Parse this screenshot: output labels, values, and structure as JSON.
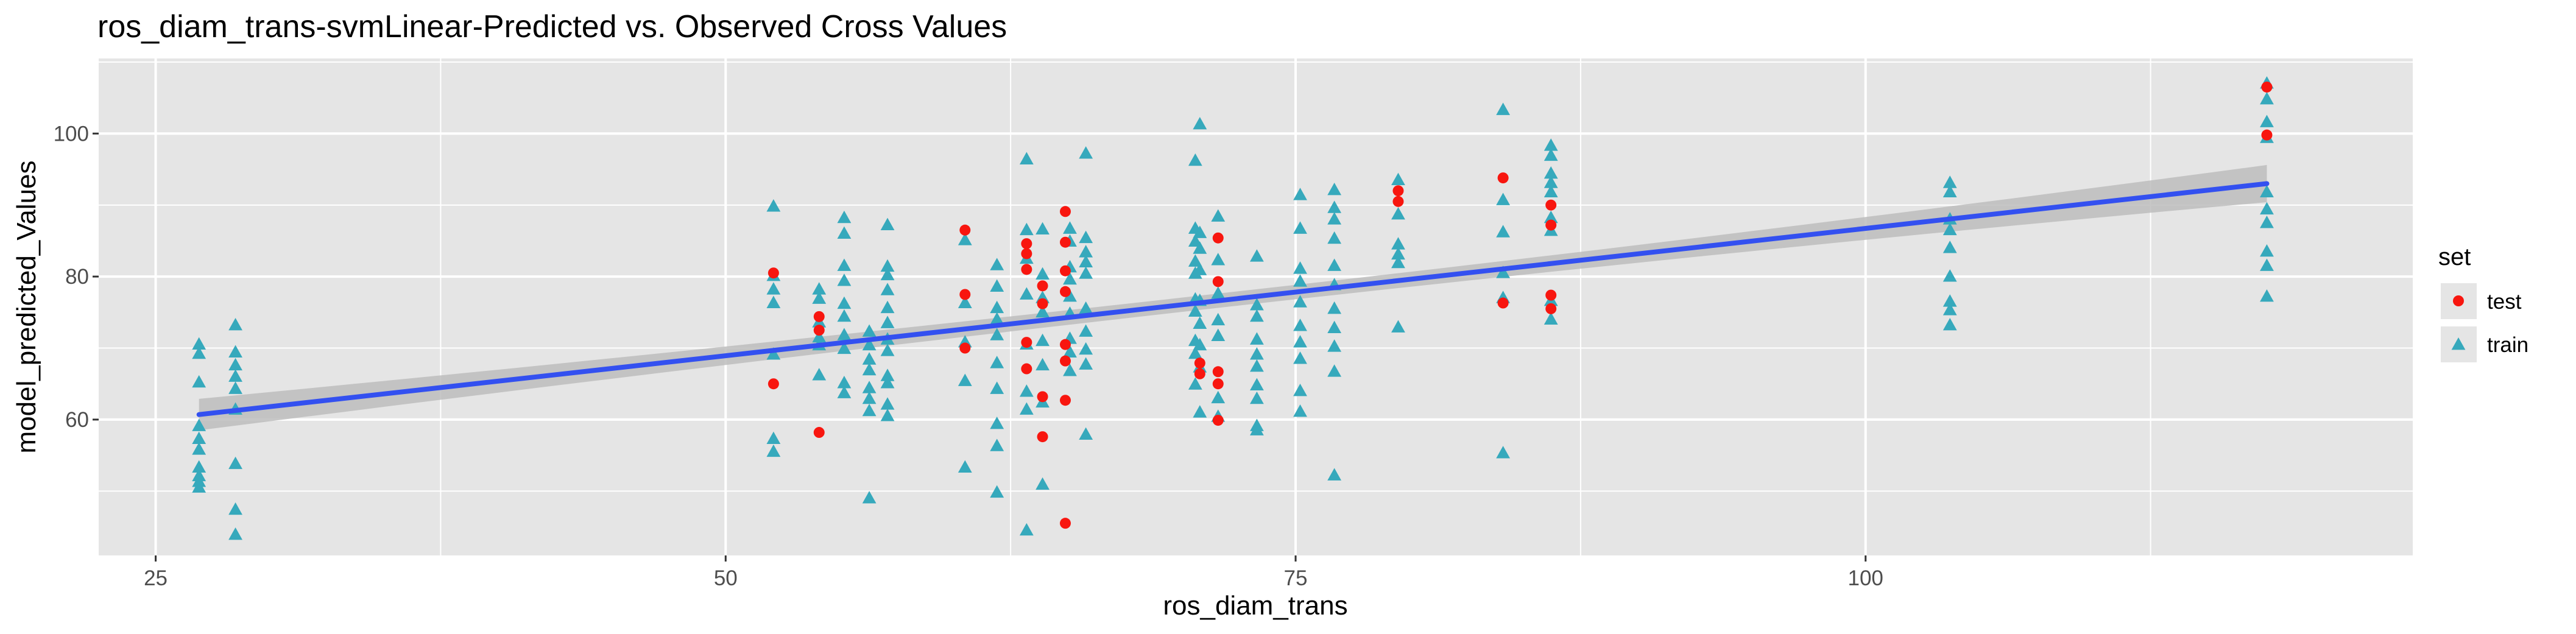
{
  "chart_data": {
    "type": "scatter",
    "title": "ros_diam_trans-svmLinear-Predicted vs. Observed Cross Values",
    "xlabel": "ros_diam_trans",
    "ylabel": "model_predicted_Values",
    "xlim": [
      22.5,
      124
    ],
    "ylim": [
      41,
      110.5
    ],
    "x_ticks": [
      25,
      50,
      75,
      100
    ],
    "y_ticks": [
      60,
      80,
      100
    ],
    "grid": true,
    "legend": {
      "title": "set",
      "position": "right",
      "entries": [
        "test",
        "train"
      ]
    },
    "colors": {
      "test": "#F8160F",
      "train": "#36A9BC",
      "fit_line": "#3350F0",
      "ribbon": "#bdbdbd",
      "panel": "#e5e5e5",
      "grid": "#ffffff"
    },
    "fit": {
      "x": [
        26.9,
        117.6
      ],
      "y": [
        60.7,
        93
      ],
      "ribbon_halfwidth_start": 2.2,
      "ribbon_halfwidth_end": 2.6,
      "ribbon_halfwidth_mid": 1.0
    },
    "series": [
      {
        "name": "train",
        "marker": "triangle",
        "points": [
          [
            26.9,
            70.5
          ],
          [
            26.9,
            69.2
          ],
          [
            26.9,
            65.2
          ],
          [
            26.9,
            59.1
          ],
          [
            26.9,
            57.3
          ],
          [
            26.9,
            55.8
          ],
          [
            26.9,
            53.3
          ],
          [
            26.9,
            52.1
          ],
          [
            26.9,
            51.3
          ],
          [
            26.9,
            50.5
          ],
          [
            28.5,
            73.2
          ],
          [
            28.5,
            69.4
          ],
          [
            28.5,
            67.6
          ],
          [
            28.5,
            66.0
          ],
          [
            28.5,
            64.3
          ],
          [
            28.5,
            61.4
          ],
          [
            28.5,
            53.8
          ],
          [
            28.5,
            47.4
          ],
          [
            28.5,
            43.9
          ],
          [
            52.1,
            89.8
          ],
          [
            52.1,
            80.1
          ],
          [
            52.1,
            78.2
          ],
          [
            52.1,
            76.3
          ],
          [
            52.1,
            69.1
          ],
          [
            52.1,
            57.3
          ],
          [
            52.1,
            55.5
          ],
          [
            54.1,
            78.2
          ],
          [
            54.1,
            76.9
          ],
          [
            54.1,
            73.6
          ],
          [
            54.1,
            71.5
          ],
          [
            54.1,
            70.4
          ],
          [
            54.1,
            66.2
          ],
          [
            55.2,
            88.2
          ],
          [
            55.2,
            86.0
          ],
          [
            55.2,
            81.5
          ],
          [
            55.2,
            79.4
          ],
          [
            55.2,
            76.2
          ],
          [
            55.2,
            74.4
          ],
          [
            55.2,
            71.8
          ],
          [
            55.2,
            69.9
          ],
          [
            55.2,
            65.1
          ],
          [
            55.2,
            63.7
          ],
          [
            56.3,
            49.0
          ],
          [
            56.3,
            72.3
          ],
          [
            56.3,
            70.4
          ],
          [
            56.3,
            68.4
          ],
          [
            56.3,
            66.9
          ],
          [
            56.3,
            64.4
          ],
          [
            56.3,
            62.9
          ],
          [
            56.3,
            61.2
          ],
          [
            57.1,
            87.2
          ],
          [
            57.1,
            81.4
          ],
          [
            57.1,
            80.2
          ],
          [
            57.1,
            78.1
          ],
          [
            57.1,
            75.6
          ],
          [
            57.1,
            73.5
          ],
          [
            57.1,
            71.2
          ],
          [
            57.1,
            69.6
          ],
          [
            57.1,
            66.1
          ],
          [
            57.1,
            65.1
          ],
          [
            57.1,
            62.1
          ],
          [
            57.1,
            60.5
          ],
          [
            60.5,
            85.1
          ],
          [
            60.5,
            76.3
          ],
          [
            60.5,
            70.8
          ],
          [
            60.5,
            65.4
          ],
          [
            60.5,
            53.3
          ],
          [
            61.9,
            81.6
          ],
          [
            61.9,
            78.6
          ],
          [
            61.9,
            75.6
          ],
          [
            61.9,
            74.0
          ],
          [
            61.9,
            71.8
          ],
          [
            61.9,
            67.9
          ],
          [
            61.9,
            64.3
          ],
          [
            61.9,
            59.4
          ],
          [
            61.9,
            56.3
          ],
          [
            61.9,
            49.8
          ],
          [
            63.2,
            96.4
          ],
          [
            63.2,
            86.5
          ],
          [
            63.2,
            82.5
          ],
          [
            63.2,
            77.5
          ],
          [
            63.2,
            70.5
          ],
          [
            63.2,
            63.9
          ],
          [
            63.2,
            61.4
          ],
          [
            63.2,
            44.5
          ],
          [
            63.9,
            86.6
          ],
          [
            63.9,
            80.3
          ],
          [
            63.9,
            77.0
          ],
          [
            63.9,
            75.0
          ],
          [
            63.9,
            71.0
          ],
          [
            63.9,
            67.6
          ],
          [
            63.9,
            62.4
          ],
          [
            63.9,
            50.9
          ],
          [
            65.1,
            86.7
          ],
          [
            65.1,
            84.9
          ],
          [
            65.1,
            81.3
          ],
          [
            65.1,
            79.6
          ],
          [
            65.1,
            77.2
          ],
          [
            65.1,
            74.8
          ],
          [
            65.1,
            71.3
          ],
          [
            65.1,
            69.4
          ],
          [
            65.1,
            66.8
          ],
          [
            65.8,
            97.2
          ],
          [
            65.8,
            85.4
          ],
          [
            65.8,
            83.4
          ],
          [
            65.8,
            82.0
          ],
          [
            65.8,
            80.4
          ],
          [
            65.8,
            75.5
          ],
          [
            65.8,
            72.3
          ],
          [
            65.8,
            69.8
          ],
          [
            65.8,
            67.7
          ],
          [
            65.8,
            57.9
          ],
          [
            70.6,
            96.2
          ],
          [
            70.6,
            86.7
          ],
          [
            70.6,
            84.9
          ],
          [
            70.6,
            82.1
          ],
          [
            70.6,
            80.4
          ],
          [
            70.6,
            76.8
          ],
          [
            70.6,
            75.1
          ],
          [
            70.6,
            71.0
          ],
          [
            70.6,
            69.2
          ],
          [
            70.6,
            64.9
          ],
          [
            70.8,
            101.3
          ],
          [
            70.8,
            86.1
          ],
          [
            70.8,
            83.9
          ],
          [
            70.8,
            80.9
          ],
          [
            70.8,
            76.6
          ],
          [
            70.8,
            73.4
          ],
          [
            70.8,
            70.4
          ],
          [
            70.8,
            67.3
          ],
          [
            70.8,
            61.0
          ],
          [
            71.6,
            88.4
          ],
          [
            71.6,
            82.3
          ],
          [
            71.6,
            77.6
          ],
          [
            71.6,
            73.9
          ],
          [
            71.6,
            71.7
          ],
          [
            71.6,
            63.0
          ],
          [
            71.6,
            60.4
          ],
          [
            73.3,
            82.8
          ],
          [
            73.3,
            76.0
          ],
          [
            73.3,
            74.4
          ],
          [
            73.3,
            71.2
          ],
          [
            73.3,
            69.1
          ],
          [
            73.3,
            67.4
          ],
          [
            73.3,
            64.8
          ],
          [
            73.3,
            62.9
          ],
          [
            73.3,
            59.1
          ],
          [
            73.3,
            58.5
          ],
          [
            75.2,
            91.4
          ],
          [
            75.2,
            86.7
          ],
          [
            75.2,
            81.1
          ],
          [
            75.2,
            79.3
          ],
          [
            75.2,
            76.4
          ],
          [
            75.2,
            73.1
          ],
          [
            75.2,
            70.8
          ],
          [
            75.2,
            68.5
          ],
          [
            75.2,
            64.0
          ],
          [
            75.2,
            61.1
          ],
          [
            76.7,
            92.1
          ],
          [
            76.7,
            89.6
          ],
          [
            76.7,
            88.0
          ],
          [
            76.7,
            85.3
          ],
          [
            76.7,
            81.5
          ],
          [
            76.7,
            78.8
          ],
          [
            76.7,
            75.5
          ],
          [
            76.7,
            72.8
          ],
          [
            76.7,
            70.2
          ],
          [
            76.7,
            66.7
          ],
          [
            76.7,
            52.2
          ],
          [
            79.5,
            93.5
          ],
          [
            79.5,
            88.7
          ],
          [
            79.5,
            84.5
          ],
          [
            79.5,
            83.1
          ],
          [
            79.5,
            81.9
          ],
          [
            79.5,
            72.9
          ],
          [
            84.1,
            103.3
          ],
          [
            84.1,
            90.7
          ],
          [
            84.1,
            86.2
          ],
          [
            84.1,
            80.5
          ],
          [
            84.1,
            77.0
          ],
          [
            84.1,
            55.3
          ],
          [
            86.2,
            98.3
          ],
          [
            86.2,
            96.9
          ],
          [
            86.2,
            94.4
          ],
          [
            86.2,
            93.1
          ],
          [
            86.2,
            91.8
          ],
          [
            86.2,
            88.2
          ],
          [
            86.2,
            86.4
          ],
          [
            86.2,
            76.6
          ],
          [
            86.2,
            74.0
          ],
          [
            103.7,
            93.1
          ],
          [
            103.7,
            91.8
          ],
          [
            103.7,
            88.0
          ],
          [
            103.7,
            86.5
          ],
          [
            103.7,
            84.0
          ],
          [
            103.7,
            80.0
          ],
          [
            103.7,
            76.5
          ],
          [
            103.7,
            75.3
          ],
          [
            103.7,
            73.2
          ],
          [
            117.6,
            107.0
          ],
          [
            117.6,
            104.8
          ],
          [
            117.6,
            101.6
          ],
          [
            117.6,
            99.4
          ],
          [
            117.6,
            91.8
          ],
          [
            117.6,
            89.4
          ],
          [
            117.6,
            87.5
          ],
          [
            117.6,
            83.5
          ],
          [
            117.6,
            81.5
          ],
          [
            117.6,
            77.2
          ]
        ]
      },
      {
        "name": "test",
        "marker": "circle",
        "points": [
          [
            52.1,
            80.5
          ],
          [
            52.1,
            65.0
          ],
          [
            54.1,
            74.4
          ],
          [
            54.1,
            72.5
          ],
          [
            54.1,
            58.2
          ],
          [
            60.5,
            86.5
          ],
          [
            60.5,
            77.5
          ],
          [
            60.5,
            70.0
          ],
          [
            63.2,
            84.6
          ],
          [
            63.2,
            83.2
          ],
          [
            63.2,
            81.0
          ],
          [
            63.2,
            70.8
          ],
          [
            63.2,
            67.1
          ],
          [
            63.9,
            78.7
          ],
          [
            63.9,
            76.2
          ],
          [
            63.9,
            63.2
          ],
          [
            63.9,
            57.6
          ],
          [
            64.9,
            89.1
          ],
          [
            64.9,
            84.8
          ],
          [
            64.9,
            80.8
          ],
          [
            64.9,
            77.9
          ],
          [
            64.9,
            70.5
          ],
          [
            64.9,
            68.2
          ],
          [
            64.9,
            62.7
          ],
          [
            64.9,
            45.5
          ],
          [
            70.8,
            67.9
          ],
          [
            70.8,
            66.4
          ],
          [
            71.6,
            85.4
          ],
          [
            71.6,
            79.3
          ],
          [
            71.6,
            66.7
          ],
          [
            71.6,
            65.0
          ],
          [
            71.6,
            59.9
          ],
          [
            79.5,
            92.0
          ],
          [
            79.5,
            90.5
          ],
          [
            84.1,
            93.8
          ],
          [
            84.1,
            76.3
          ],
          [
            86.2,
            90.0
          ],
          [
            86.2,
            87.2
          ],
          [
            86.2,
            77.4
          ],
          [
            86.2,
            75.5
          ],
          [
            117.6,
            106.5
          ],
          [
            117.6,
            99.8
          ]
        ]
      }
    ]
  }
}
